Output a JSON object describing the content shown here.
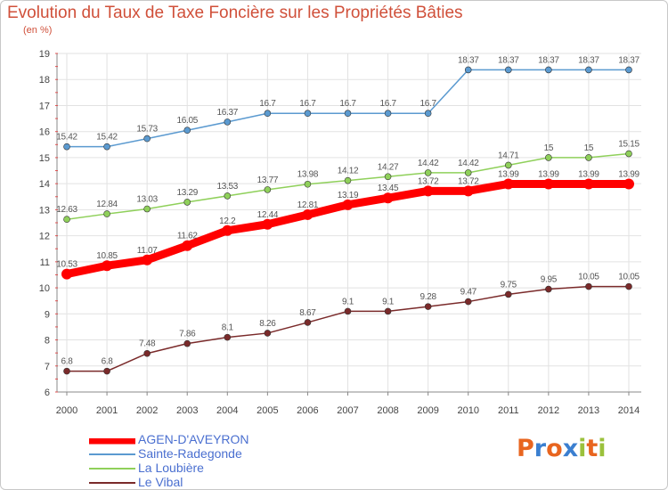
{
  "title": "Evolution du Taux de Taxe Foncière sur les Propriétés Bâties",
  "subtitle": "(en %)",
  "logo": {
    "text": "Proxiti",
    "colors": [
      "#e8651f",
      "#3b7fd0",
      "#e8651f",
      "#3b7fd0",
      "#9bc13c",
      "#e8651f",
      "#9bc13c"
    ]
  },
  "chart_data": {
    "type": "line",
    "x": [
      "2000",
      "2001",
      "2002",
      "2003",
      "2004",
      "2005",
      "2006",
      "2007",
      "2008",
      "2009",
      "2010",
      "2011",
      "2012",
      "2013",
      "2014"
    ],
    "ylim": [
      6,
      19
    ],
    "yticks": [
      "6",
      "7",
      "8",
      "9",
      "10",
      "11",
      "12",
      "13",
      "14",
      "15",
      "16",
      "17",
      "18",
      "19"
    ],
    "grid": true,
    "legend_position": "bottom-left",
    "series": [
      {
        "name": "AGEN-D'AVEYRON",
        "color": "#ff0000",
        "values": [
          10.53,
          10.85,
          11.07,
          11.62,
          12.2,
          12.44,
          12.81,
          13.19,
          13.45,
          13.72,
          13.72,
          13.99,
          13.99,
          13.99,
          13.99
        ],
        "labels": [
          "10.53",
          "10.85",
          "11.07",
          "11.62",
          "12.2",
          "12.44",
          "12.81",
          "13.19",
          "13.45",
          "13.72",
          "13.72",
          "13.99",
          "13.99",
          "13.99",
          "13.99"
        ]
      },
      {
        "name": "Sainte-Radegonde",
        "color": "#5b9ad0",
        "values": [
          15.42,
          15.42,
          15.73,
          16.05,
          16.37,
          16.7,
          16.7,
          16.7,
          16.7,
          16.7,
          18.37,
          18.37,
          18.37,
          18.37,
          18.37
        ],
        "labels": [
          "15.42",
          "15.42",
          "15.73",
          "16.05",
          "16.37",
          "16.7",
          "16.7",
          "16.7",
          "16.7",
          "16.7",
          "18.37",
          "18.37",
          "18.37",
          "18.37",
          "18.37"
        ]
      },
      {
        "name": "La Loubière",
        "color": "#8fd05a",
        "values": [
          12.63,
          12.84,
          13.03,
          13.29,
          13.53,
          13.77,
          13.98,
          14.12,
          14.27,
          14.42,
          14.42,
          14.71,
          15,
          15,
          15.15
        ],
        "labels": [
          "12.63",
          "12.84",
          "13.03",
          "13.29",
          "13.53",
          "13.77",
          "13.98",
          "14.12",
          "14.27",
          "14.42",
          "14.42",
          "14.71",
          "15",
          "15",
          "15.15"
        ]
      },
      {
        "name": "Le Vibal",
        "color": "#7a2a2a",
        "values": [
          6.8,
          6.8,
          7.48,
          7.86,
          8.1,
          8.26,
          8.67,
          9.1,
          9.1,
          9.28,
          9.47,
          9.75,
          9.95,
          10.05,
          10.05
        ],
        "labels": [
          "6.8",
          "6.8",
          "7.48",
          "7.86",
          "8.1",
          "8.26",
          "8.67",
          "9.1",
          "9.1",
          "9.28",
          "9.47",
          "9.75",
          "9.95",
          "10.05",
          "10.05"
        ]
      }
    ]
  }
}
